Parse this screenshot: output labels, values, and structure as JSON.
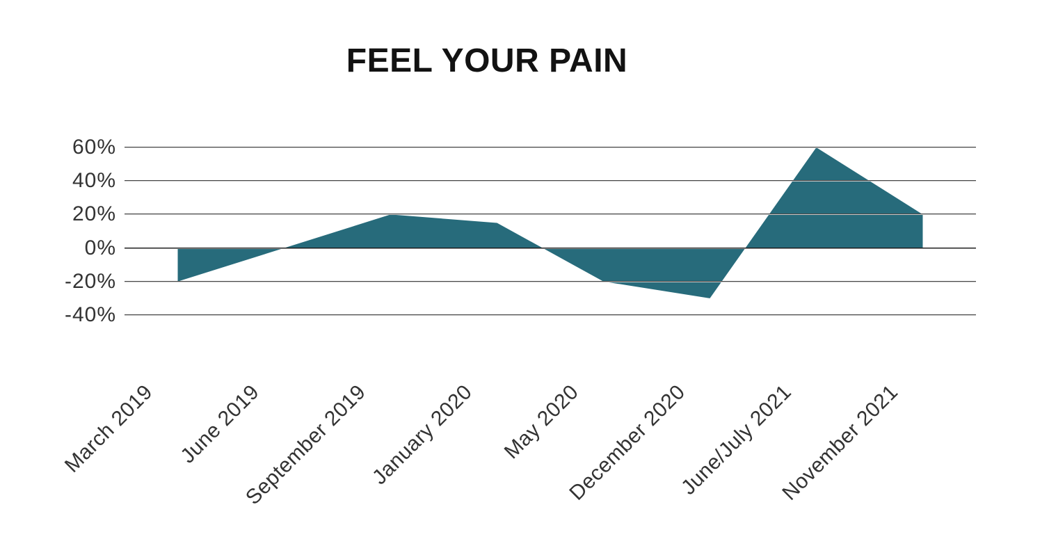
{
  "chart_data": {
    "type": "area",
    "title": "FEEL YOUR PAIN",
    "categories": [
      "March 2019",
      "June 2019",
      "September 2019",
      "January 2020",
      "May 2020",
      "December 2020",
      "June/July 2021",
      "November 2021"
    ],
    "values": [
      -20,
      0,
      20,
      15,
      -20,
      -30,
      60,
      20
    ],
    "value_unit": "%",
    "y_ticks": [
      60,
      40,
      20,
      0,
      -20,
      -40
    ],
    "y_tick_labels": [
      "60%",
      "40%",
      "20%",
      "0%",
      "-20%",
      "-40%"
    ],
    "ylim": [
      -40,
      60
    ],
    "xlabel": "",
    "ylabel": "",
    "grid": true,
    "legend": false,
    "fill_color": "#276b7b",
    "gridline_color": "#474747",
    "zero_line_color": "#161616",
    "axis_label_color": "#333333",
    "title_color": "#121212"
  }
}
